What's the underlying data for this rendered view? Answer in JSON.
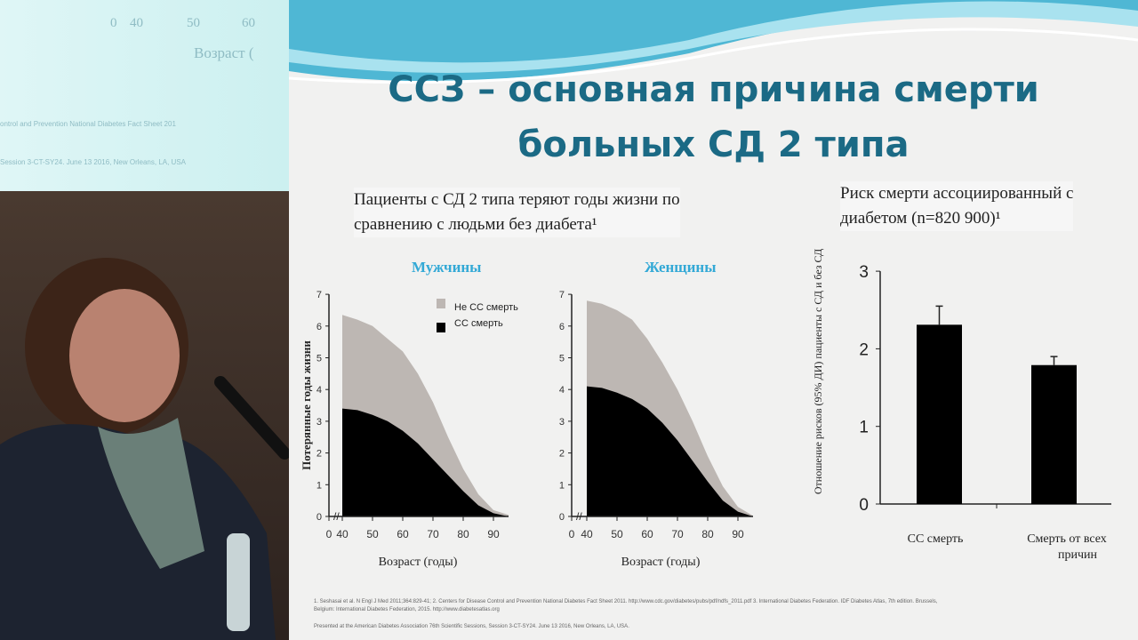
{
  "projector_screen": {
    "ticks": [
      "0",
      "40",
      "50",
      "60"
    ],
    "axis_label": "Возраст (",
    "foot1": "ontrol and Prevention National Diabetes Fact Sheet 201",
    "foot2": "Session 3-CT-SY24. June 13 2016, New Orleans, LA, USA"
  },
  "slide": {
    "title_line1": "ССЗ – основная причина смерти",
    "title_line2": "больных СД 2 типа",
    "left_subtitle_line1": "Пациенты с СД 2 типа теряют годы жизни по",
    "left_subtitle_line2": "сравнению с людьми без диабета¹",
    "right_subtitle_line1": "Риск смерти ассоциированный с",
    "right_subtitle_line2": "диабетом (n=820 900)¹",
    "footnote1": "1. Seshasai et al. N Engl J Med 2011;364:829-41; 2. Centers for Disease Control and Prevention National Diabetes Fact Sheet 2011. http://www.cdc.gov/diabetes/pubs/pdf/ndfs_2011.pdf 3. International Diabetes Federation. IDF Diabetes Atlas, 7th edition. Brussels,",
    "footnote2": "Belgium: International Diabetes Federation, 2015. http://www.diabetesatlas.org",
    "footnote3": "Presented at the American Diabetes Association 76th Scientific Sessions, Session 3-CT-SY24. June 13 2016, New Orleans, LA, USA."
  },
  "colors": {
    "title": "#1b6a85",
    "panel_title": "#33a9d6",
    "cv": "#000000",
    "non_cv": "#bdb7b3"
  },
  "chart_data": [
    {
      "type": "area",
      "stacked": true,
      "title": "Мужчины",
      "xlabel": "Возраст (годы)",
      "ylabel": "Потерянные годы жизни",
      "x": [
        40,
        45,
        50,
        55,
        60,
        65,
        70,
        75,
        80,
        85,
        90,
        95
      ],
      "xticks": [
        "0",
        "40",
        "50",
        "60",
        "70",
        "80",
        "90"
      ],
      "yticks": [
        "0",
        "1",
        "2",
        "3",
        "4",
        "5",
        "6",
        "7"
      ],
      "ylim": [
        0,
        7
      ],
      "legend": "top-right",
      "series": [
        {
          "name": "СС смерть",
          "values": [
            3.4,
            3.35,
            3.2,
            3.0,
            2.7,
            2.3,
            1.8,
            1.3,
            0.8,
            0.35,
            0.1,
            0
          ]
        },
        {
          "name": "Не СС смерть",
          "values": [
            2.95,
            2.85,
            2.8,
            2.6,
            2.5,
            2.2,
            1.8,
            1.2,
            0.7,
            0.35,
            0.1,
            0.05
          ]
        }
      ]
    },
    {
      "type": "area",
      "stacked": true,
      "title": "Женщины",
      "xlabel": "Возраст (годы)",
      "ylabel": "",
      "x": [
        40,
        45,
        50,
        55,
        60,
        65,
        70,
        75,
        80,
        85,
        90,
        95
      ],
      "xticks": [
        "0",
        "40",
        "50",
        "60",
        "70",
        "80",
        "90"
      ],
      "yticks": [
        "0",
        "1",
        "2",
        "3",
        "4",
        "5",
        "6",
        "7"
      ],
      "ylim": [
        0,
        7
      ],
      "series": [
        {
          "name": "СС смерть",
          "values": [
            4.1,
            4.05,
            3.9,
            3.7,
            3.4,
            2.95,
            2.4,
            1.75,
            1.1,
            0.5,
            0.15,
            0
          ]
        },
        {
          "name": "Не СС смерть",
          "values": [
            2.7,
            2.65,
            2.6,
            2.5,
            2.2,
            1.9,
            1.6,
            1.25,
            0.8,
            0.45,
            0.15,
            0.02
          ]
        }
      ]
    },
    {
      "type": "bar",
      "title": "",
      "ylabel": "Отношение рисков (95% ДИ) пациенты с СД и без СД",
      "categories": [
        "СС смерть",
        "Смерть от всех причин"
      ],
      "values": [
        2.31,
        1.79
      ],
      "error_upper": [
        2.55,
        1.9
      ],
      "yticks": [
        "0",
        "1",
        "2",
        "3"
      ],
      "ylim": [
        0,
        3
      ]
    }
  ]
}
